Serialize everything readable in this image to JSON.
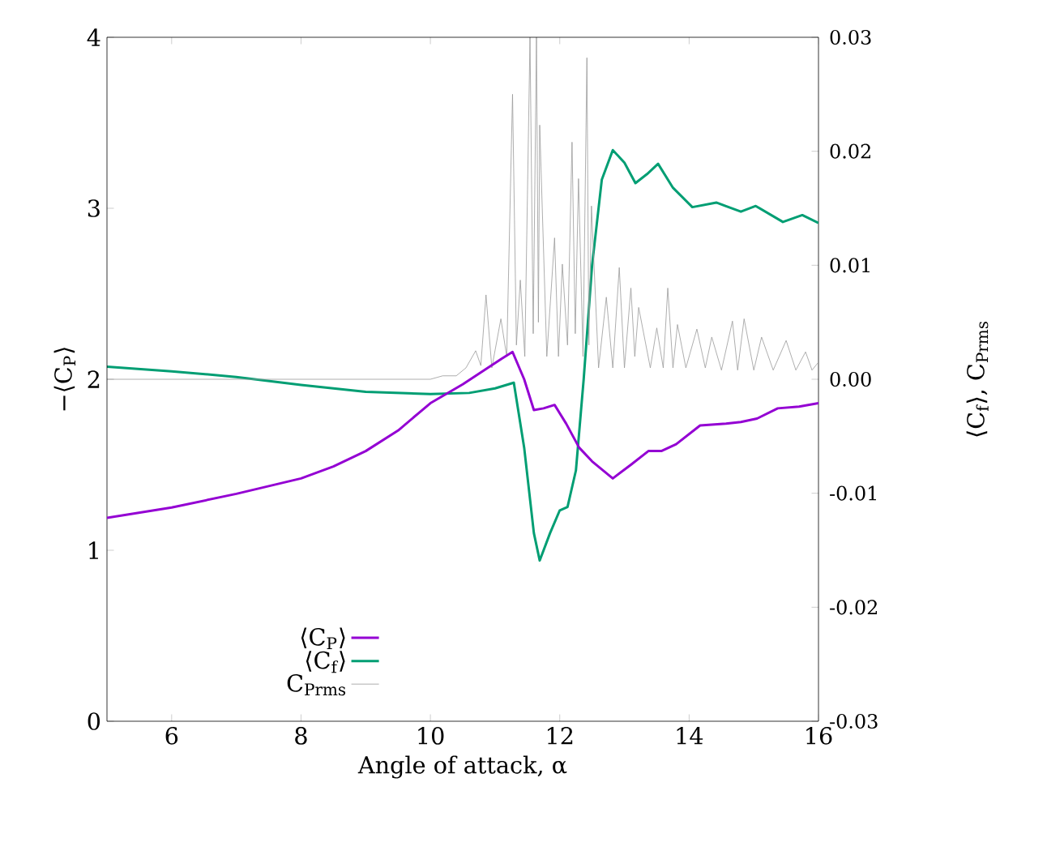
{
  "chart_data": {
    "type": "line",
    "xlabel": "Angle of attack, α",
    "ylabel": "−⟨C$_{P}$⟩",
    "y2label": "⟨C$_{f}$⟩, C$_{Prms}$",
    "xlim": [
      5,
      16
    ],
    "xticks": [
      6,
      8,
      10,
      12,
      14,
      16
    ],
    "ylim": [
      0,
      4
    ],
    "yticks": [
      0,
      1,
      2,
      3,
      4
    ],
    "y2lim": [
      -0.03,
      0.03
    ],
    "y2ticks": [
      -0.03,
      -0.02,
      -0.01,
      {
        "value": 0,
        "label": "0.00"
      },
      0.01,
      0.02,
      0.03
    ],
    "legend": "bottom",
    "grid": false,
    "series": [
      {
        "name": "⟨C$_{P}$⟩",
        "color": "#9400d3",
        "x": [
          5,
          6,
          7,
          8,
          8.5,
          9,
          9.5,
          10,
          10.5,
          10.9,
          11.1,
          11.27,
          11.45,
          11.6,
          11.75,
          11.92,
          12.1,
          12.3,
          12.5,
          12.82,
          13.1,
          13.37,
          13.57,
          13.8,
          14.17,
          14.57,
          14.8,
          15.05,
          15.37,
          15.7,
          16
        ],
        "values": [
          1.19,
          1.25,
          1.33,
          1.42,
          1.49,
          1.58,
          1.7,
          1.86,
          1.97,
          2.07,
          2.12,
          2.16,
          2.0,
          1.82,
          1.83,
          1.85,
          1.74,
          1.6,
          1.52,
          1.42,
          1.5,
          1.58,
          1.58,
          1.62,
          1.73,
          1.74,
          1.75,
          1.77,
          1.83,
          1.84,
          1.86
        ]
      },
      {
        "name": "⟨C$_{f}$⟩",
        "color": "#009e73",
        "axis": "y2",
        "x": [
          5,
          6,
          7,
          8,
          9,
          10,
          10.6,
          11.0,
          11.29,
          11.45,
          11.6,
          11.69,
          11.85,
          12.0,
          12.12,
          12.25,
          12.37,
          12.5,
          12.65,
          12.82,
          13.0,
          13.17,
          13.35,
          13.52,
          13.75,
          14.05,
          14.42,
          14.8,
          15.03,
          15.45,
          15.75,
          16
        ],
        "values": [
          0.0011,
          0.0007,
          0.0002,
          -0.0005,
          -0.0011,
          -0.0013,
          -0.0012,
          -0.0008,
          -0.0003,
          -0.006,
          -0.0135,
          -0.0159,
          -0.0135,
          -0.0115,
          -0.0112,
          -0.008,
          0.0,
          0.01,
          0.0175,
          0.0201,
          0.019,
          0.0172,
          0.018,
          0.0189,
          0.0168,
          0.0151,
          0.0155,
          0.0147,
          0.0152,
          0.0138,
          0.0144,
          0.0137
        ]
      },
      {
        "name": "C$_{Prms}$",
        "color": "#999999",
        "axis": "y2",
        "x": [
          5,
          10.0,
          10.19,
          10.4,
          10.55,
          10.7,
          10.78,
          10.86,
          10.95,
          11.09,
          11.18,
          11.27,
          11.33,
          11.39,
          11.46,
          11.54,
          11.59,
          11.64,
          11.67,
          11.69,
          11.8,
          11.92,
          11.98,
          12.04,
          12.12,
          12.19,
          12.24,
          12.29,
          12.36,
          12.42,
          12.45,
          12.49,
          12.6,
          12.72,
          12.82,
          12.92,
          13.0,
          13.1,
          13.16,
          13.22,
          13.4,
          13.5,
          13.6,
          13.67,
          13.75,
          13.82,
          13.95,
          14.12,
          14.25,
          14.35,
          14.5,
          14.67,
          14.75,
          14.85,
          15.0,
          15.12,
          15.3,
          15.5,
          15.65,
          15.8,
          15.9,
          16
        ],
        "values": [
          0.0,
          0.0,
          0.0003,
          0.0003,
          0.001,
          0.0025,
          0.0012,
          0.0074,
          0.001,
          0.0053,
          0.002,
          0.025,
          0.003,
          0.0087,
          0.002,
          0.03,
          0.004,
          0.03,
          0.005,
          0.0223,
          0.002,
          0.0124,
          0.002,
          0.0101,
          0.003,
          0.0208,
          0.004,
          0.0176,
          0.002,
          0.0282,
          0.003,
          0.0152,
          0.001,
          0.0072,
          0.001,
          0.0098,
          0.001,
          0.008,
          0.002,
          0.0063,
          0.001,
          0.0045,
          0.001,
          0.008,
          0.001,
          0.0048,
          0.001,
          0.0044,
          0.001,
          0.0037,
          0.0008,
          0.0051,
          0.0008,
          0.0053,
          0.0008,
          0.0037,
          0.0008,
          0.0034,
          0.0008,
          0.0024,
          0.0008,
          0.0015
        ]
      }
    ]
  }
}
